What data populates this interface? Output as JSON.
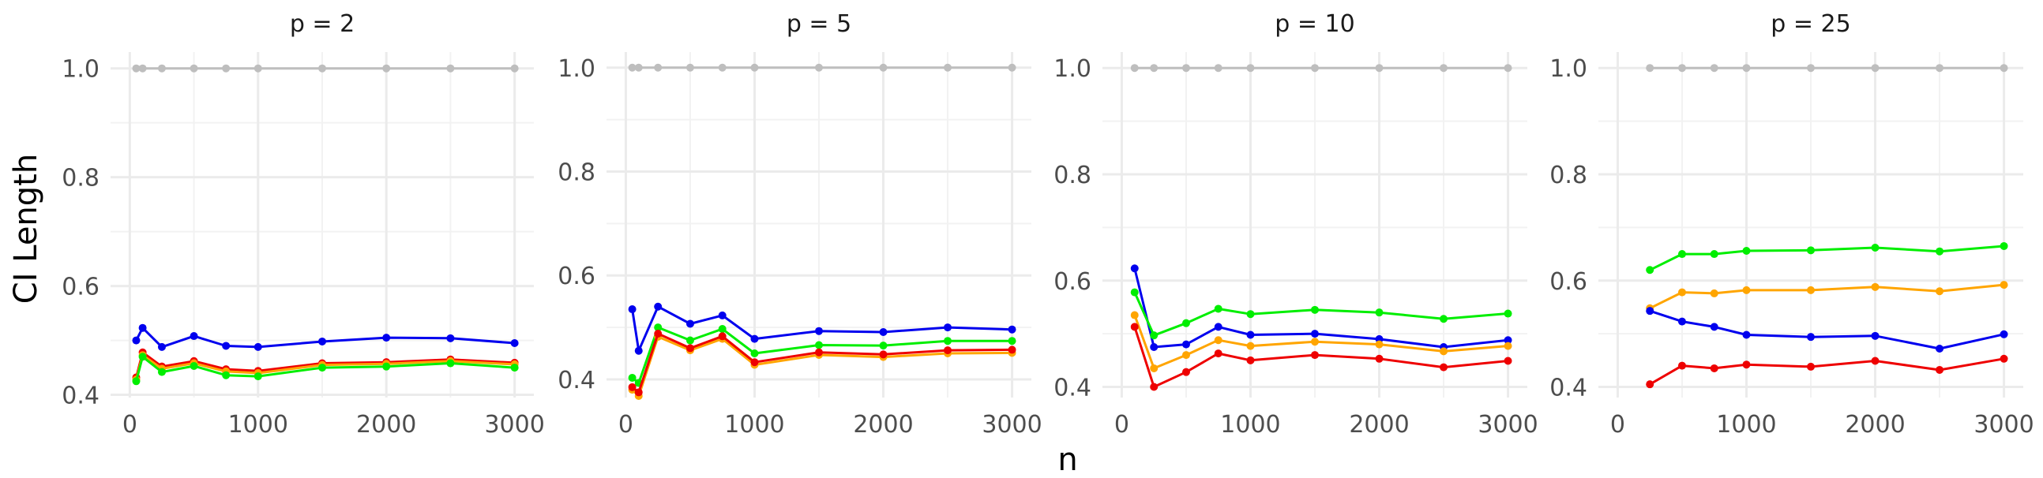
{
  "chart_data": {
    "type": "line",
    "xlabel": "n",
    "ylabel": "CI Length",
    "grid": true,
    "legend": "none",
    "panels": [
      {
        "title": "p = 2",
        "xlim": [
          -150,
          3150
        ],
        "ylim": [
          0.395,
          1.03
        ],
        "x_ticks": [
          0,
          1000,
          2000,
          3000
        ],
        "y_ticks": [
          0.4,
          0.6,
          0.8,
          1.0
        ],
        "y_tick_labels": [
          "0.4",
          "0.6",
          "0.8",
          "1.0"
        ],
        "series": [
          {
            "color": "#bebebe",
            "x": [
              50,
              100,
              250,
              500,
              750,
              1000,
              1500,
              2000,
              2500,
              3000
            ],
            "y": [
              1.0,
              1.0,
              1.0,
              1.0,
              1.0,
              1.0,
              1.0,
              1.0,
              1.0,
              1.0
            ]
          },
          {
            "color": "#0000ee",
            "x": [
              50,
              100,
              250,
              500,
              750,
              1000,
              1500,
              2000,
              2500,
              3000
            ],
            "y": [
              0.5,
              0.523,
              0.488,
              0.508,
              0.49,
              0.488,
              0.498,
              0.505,
              0.504,
              0.495
            ]
          },
          {
            "color": "#ee0000",
            "x": [
              50,
              100,
              250,
              500,
              750,
              1000,
              1500,
              2000,
              2500,
              3000
            ],
            "y": [
              0.432,
              0.478,
              0.452,
              0.462,
              0.447,
              0.444,
              0.458,
              0.46,
              0.465,
              0.459
            ]
          },
          {
            "color": "#ffa500",
            "x": [
              50,
              100,
              250,
              500,
              750,
              1000,
              1500,
              2000,
              2500,
              3000
            ],
            "y": [
              0.428,
              0.473,
              0.448,
              0.458,
              0.443,
              0.44,
              0.455,
              0.457,
              0.462,
              0.456
            ]
          },
          {
            "color": "#00ee00",
            "x": [
              50,
              100,
              250,
              500,
              750,
              1000,
              1500,
              2000,
              2500,
              3000
            ],
            "y": [
              0.425,
              0.47,
              0.442,
              0.453,
              0.436,
              0.434,
              0.45,
              0.452,
              0.458,
              0.45
            ]
          }
        ]
      },
      {
        "title": "p = 5",
        "xlim": [
          -150,
          3150
        ],
        "ylim": [
          0.365,
          1.03
        ],
        "x_ticks": [
          0,
          1000,
          2000,
          3000
        ],
        "y_ticks": [
          0.4,
          0.6,
          0.8,
          1.0
        ],
        "y_tick_labels": [
          "0.4",
          "0.6",
          "0.8",
          "1.0"
        ],
        "series": [
          {
            "color": "#bebebe",
            "x": [
              50,
              100,
              250,
              500,
              750,
              1000,
              1500,
              2000,
              2500,
              3000
            ],
            "y": [
              1.0,
              1.0,
              1.0,
              1.0,
              1.0,
              1.0,
              1.0,
              1.0,
              1.0,
              1.0
            ]
          },
          {
            "color": "#0000ee",
            "x": [
              50,
              100,
              250,
              500,
              750,
              1000,
              1500,
              2000,
              2500,
              3000
            ],
            "y": [
              0.535,
              0.455,
              0.54,
              0.507,
              0.523,
              0.478,
              0.493,
              0.491,
              0.5,
              0.496
            ]
          },
          {
            "color": "#00ee00",
            "x": [
              50,
              100,
              250,
              500,
              750,
              1000,
              1500,
              2000,
              2500,
              3000
            ],
            "y": [
              0.403,
              0.393,
              0.5,
              0.475,
              0.497,
              0.45,
              0.466,
              0.465,
              0.474,
              0.474
            ]
          },
          {
            "color": "#ffa500",
            "x": [
              50,
              100,
              250,
              500,
              750,
              1000,
              1500,
              2000,
              2500,
              3000
            ],
            "y": [
              0.38,
              0.368,
              0.482,
              0.456,
              0.478,
              0.428,
              0.447,
              0.443,
              0.45,
              0.451
            ]
          },
          {
            "color": "#ee0000",
            "x": [
              50,
              100,
              250,
              500,
              750,
              1000,
              1500,
              2000,
              2500,
              3000
            ],
            "y": [
              0.385,
              0.375,
              0.488,
              0.46,
              0.483,
              0.433,
              0.452,
              0.448,
              0.456,
              0.457
            ]
          }
        ]
      },
      {
        "title": "p = 10",
        "xlim": [
          -150,
          3150
        ],
        "ylim": [
          0.38,
          1.03
        ],
        "x_ticks": [
          0,
          1000,
          2000,
          3000
        ],
        "y_ticks": [
          0.4,
          0.6,
          0.8,
          1.0
        ],
        "y_tick_labels": [
          "0.4",
          "0.6",
          "0.8",
          "1.0"
        ],
        "series": [
          {
            "color": "#bebebe",
            "x": [
              100,
              250,
              500,
              750,
              1000,
              1500,
              2000,
              2500,
              3000
            ],
            "y": [
              1.0,
              1.0,
              1.0,
              1.0,
              1.0,
              1.0,
              1.0,
              1.0,
              1.0
            ]
          },
          {
            "color": "#0000ee",
            "x": [
              100,
              250,
              500,
              750,
              1000,
              1500,
              2000,
              2500,
              3000
            ],
            "y": [
              0.623,
              0.475,
              0.48,
              0.513,
              0.498,
              0.5,
              0.49,
              0.475,
              0.488
            ]
          },
          {
            "color": "#00ee00",
            "x": [
              100,
              250,
              500,
              750,
              1000,
              1500,
              2000,
              2500,
              3000
            ],
            "y": [
              0.578,
              0.497,
              0.52,
              0.547,
              0.537,
              0.545,
              0.54,
              0.528,
              0.538
            ]
          },
          {
            "color": "#ffa500",
            "x": [
              100,
              250,
              500,
              750,
              1000,
              1500,
              2000,
              2500,
              3000
            ],
            "y": [
              0.535,
              0.435,
              0.46,
              0.488,
              0.477,
              0.485,
              0.48,
              0.467,
              0.477
            ]
          },
          {
            "color": "#ee0000",
            "x": [
              100,
              250,
              500,
              750,
              1000,
              1500,
              2000,
              2500,
              3000
            ],
            "y": [
              0.513,
              0.4,
              0.428,
              0.463,
              0.45,
              0.46,
              0.453,
              0.437,
              0.449
            ]
          }
        ]
      },
      {
        "title": "p = 25",
        "xlim": [
          -150,
          3150
        ],
        "ylim": [
          0.38,
          1.03
        ],
        "x_ticks": [
          0,
          1000,
          2000,
          3000
        ],
        "y_ticks": [
          0.4,
          0.6,
          0.8,
          1.0
        ],
        "y_tick_labels": [
          "0.4",
          "0.6",
          "0.8",
          "1.0"
        ],
        "series": [
          {
            "color": "#bebebe",
            "x": [
              250,
              500,
              750,
              1000,
              1500,
              2000,
              2500,
              3000
            ],
            "y": [
              1.0,
              1.0,
              1.0,
              1.0,
              1.0,
              1.0,
              1.0,
              1.0
            ]
          },
          {
            "color": "#00ee00",
            "x": [
              250,
              500,
              750,
              1000,
              1500,
              2000,
              2500,
              3000
            ],
            "y": [
              0.62,
              0.65,
              0.65,
              0.656,
              0.657,
              0.662,
              0.655,
              0.665
            ]
          },
          {
            "color": "#ffa500",
            "x": [
              250,
              500,
              750,
              1000,
              1500,
              2000,
              2500,
              3000
            ],
            "y": [
              0.548,
              0.578,
              0.576,
              0.582,
              0.582,
              0.588,
              0.58,
              0.592
            ]
          },
          {
            "color": "#0000ee",
            "x": [
              250,
              500,
              750,
              1000,
              1500,
              2000,
              2500,
              3000
            ],
            "y": [
              0.543,
              0.523,
              0.513,
              0.498,
              0.494,
              0.496,
              0.472,
              0.499
            ]
          },
          {
            "color": "#ee0000",
            "x": [
              250,
              500,
              750,
              1000,
              1500,
              2000,
              2500,
              3000
            ],
            "y": [
              0.405,
              0.44,
              0.435,
              0.442,
              0.438,
              0.449,
              0.432,
              0.453
            ]
          }
        ]
      }
    ]
  }
}
